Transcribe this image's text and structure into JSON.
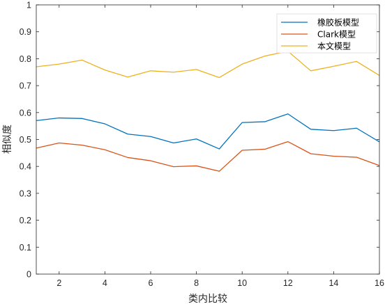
{
  "chart_data": {
    "type": "line",
    "xlabel": "类内比较",
    "ylabel": "相似度",
    "xlim": [
      1,
      16
    ],
    "ylim": [
      0,
      1
    ],
    "xticks": [
      2,
      4,
      6,
      8,
      10,
      12,
      14,
      16
    ],
    "yticks": [
      0,
      0.1,
      0.2,
      0.3,
      0.4,
      0.5,
      0.6,
      0.7,
      0.8,
      0.9,
      1
    ],
    "ytick_labels": [
      "0",
      "0.1",
      "0.2",
      "0.3",
      "0.4",
      "0.5",
      "0.6",
      "0.7",
      "0.8",
      "0.9",
      "1"
    ],
    "grid": false,
    "legend_position": "top-right",
    "x": [
      1,
      2,
      3,
      4,
      5,
      6,
      7,
      8,
      9,
      10,
      11,
      12,
      13,
      14,
      15,
      16
    ],
    "series": [
      {
        "name": "橡胶板模型",
        "color": "#0072BD",
        "values": [
          0.57,
          0.58,
          0.578,
          0.558,
          0.52,
          0.511,
          0.487,
          0.502,
          0.465,
          0.563,
          0.566,
          0.595,
          0.538,
          0.533,
          0.542,
          0.491
        ]
      },
      {
        "name": "Clark模型",
        "color": "#D95319",
        "values": [
          0.468,
          0.487,
          0.479,
          0.462,
          0.433,
          0.421,
          0.399,
          0.402,
          0.382,
          0.46,
          0.464,
          0.492,
          0.447,
          0.438,
          0.434,
          0.403
        ]
      },
      {
        "name": "本文模型",
        "color": "#EDB120",
        "values": [
          0.77,
          0.78,
          0.795,
          0.758,
          0.732,
          0.755,
          0.75,
          0.76,
          0.73,
          0.78,
          0.81,
          0.828,
          0.755,
          0.772,
          0.79,
          0.738
        ]
      }
    ]
  }
}
